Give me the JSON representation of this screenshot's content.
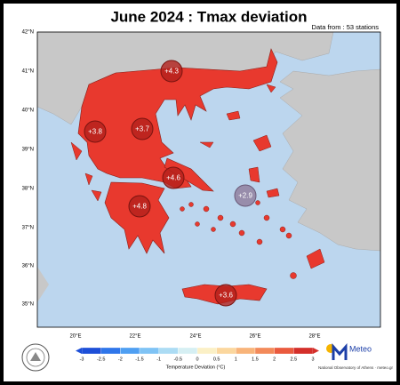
{
  "header": {
    "title": "June 2024 : Tmax deviation",
    "subtitle": "Data from : 53 stations"
  },
  "map": {
    "lat_labels": [
      "42°N",
      "41°N",
      "40°N",
      "39°N",
      "38°N",
      "37°N",
      "36°N",
      "35°N"
    ],
    "lon_labels": [
      "20°E",
      "22°E",
      "24°E",
      "26°E",
      "28°E"
    ],
    "markers": [
      {
        "label": "+4.3"
      },
      {
        "label": "+3.7"
      },
      {
        "label": "+3.8"
      },
      {
        "label": "+4.6"
      },
      {
        "label": "+2.9"
      },
      {
        "label": "+4.8"
      },
      {
        "label": "+3.6"
      }
    ]
  },
  "colorbar": {
    "ticks": [
      "-3",
      "-2.5",
      "-2",
      "-1.5",
      "-1",
      "-0.5",
      "0",
      "0.5",
      "1",
      "1.5",
      "2",
      "2.5",
      "3"
    ],
    "colors": [
      "#1d4fd8",
      "#2f76ea",
      "#4f9ff2",
      "#7fc3f5",
      "#acdcf4",
      "#d6eff3",
      "#fbf0c6",
      "#fbd79e",
      "#f8b47a",
      "#f38a5a",
      "#ea5a3e",
      "#d42f2a"
    ],
    "label": "Temperature Deviation (°C)"
  },
  "footer": {
    "brand": "Meteo",
    "credit": "National Observatory of Athens · meteo.gr"
  }
}
